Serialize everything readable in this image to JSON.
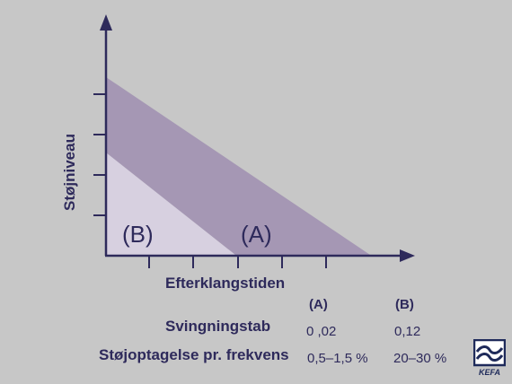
{
  "diagram": {
    "y_axis_label": "Støjniveau",
    "x_axis_label": "Efterklangstiden",
    "region_a_label": "(A)",
    "region_b_label": "(B)",
    "colors": {
      "background": "#c7c7c7",
      "axis": "#2e2a5b",
      "band_a": "#a597b4",
      "region_b": "#d7d0e0"
    }
  },
  "table": {
    "headers": [
      "(A)",
      "(B)"
    ],
    "rows": [
      {
        "label": "Svingningstab",
        "a": "0 ,02",
        "b": "0,12"
      },
      {
        "label": "Støjoptagelse pr. frekvens",
        "a": "0,5–1,5 %",
        "b": "20–30 %"
      }
    ]
  },
  "logo": {
    "text": "KEFA",
    "icon": "kefa-logo-icon"
  }
}
